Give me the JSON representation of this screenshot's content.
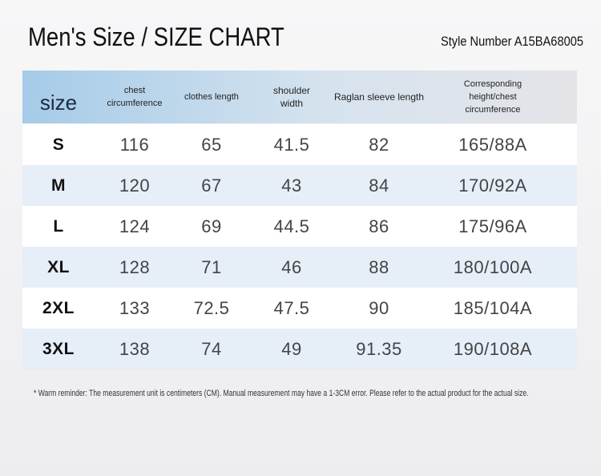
{
  "header": {
    "title": "Men's Size / SIZE CHART",
    "style_number": "Style Number A15BA68005"
  },
  "table": {
    "columns": [
      "size",
      "chest circumference",
      "clothes length",
      "shoulder width",
      "Raglan sleeve length",
      "Corresponding height/chest circumference"
    ],
    "rows": [
      [
        "S",
        "116",
        "65",
        "41.5",
        "82",
        "165/88A"
      ],
      [
        "M",
        "120",
        "67",
        "43",
        "84",
        "170/92A"
      ],
      [
        "L",
        "124",
        "69",
        "44.5",
        "86",
        "175/96A"
      ],
      [
        "XL",
        "128",
        "71",
        "46",
        "88",
        "180/100A"
      ],
      [
        "2XL",
        "133",
        "72.5",
        "47.5",
        "90",
        "185/104A"
      ],
      [
        "3XL",
        "138",
        "74",
        "49",
        "91.35",
        "190/108A"
      ]
    ]
  },
  "footnote": "* Warm reminder: The measurement unit is centimeters (CM). Manual measurement may have a 1-3CM error. Please refer to the actual product for the actual size."
}
